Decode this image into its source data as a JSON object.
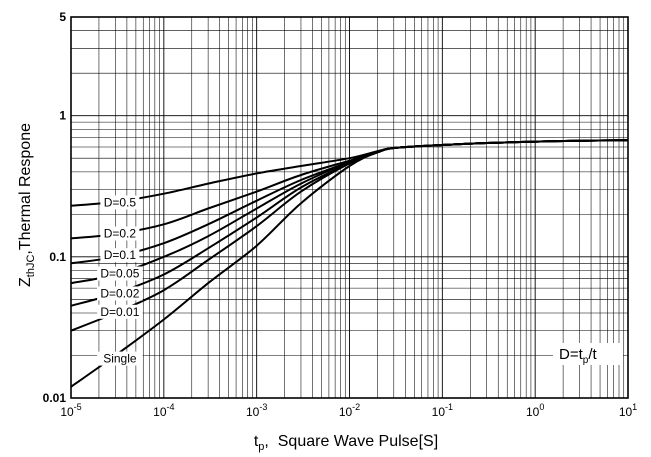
{
  "chart_data": {
    "type": "line",
    "title": "",
    "xscale": "log",
    "yscale": "log",
    "xlim": [
      1e-05,
      10
    ],
    "ylim": [
      0.01,
      5
    ],
    "grid": true,
    "xlabel": {
      "main": "t",
      "sub": "p",
      "rest": ",  Square Wave Pulse[S]"
    },
    "ylabel": {
      "main": "Z",
      "sub": "thJC",
      "rest": ",Thermal Respone"
    },
    "x_ticks": [
      {
        "value": 1e-05,
        "base": "10",
        "exp": "-5"
      },
      {
        "value": 0.0001,
        "base": "10",
        "exp": "-4"
      },
      {
        "value": 0.001,
        "base": "10",
        "exp": "-3"
      },
      {
        "value": 0.01,
        "base": "10",
        "exp": "-2"
      },
      {
        "value": 0.1,
        "base": "10",
        "exp": "-1"
      },
      {
        "value": 1,
        "base": "10",
        "exp": "0"
      },
      {
        "value": 10,
        "base": "10",
        "exp": "1"
      }
    ],
    "y_ticks": [
      {
        "value": 5,
        "label": "5"
      },
      {
        "value": 1,
        "label": "1"
      },
      {
        "value": 0.1,
        "label": "0.1"
      },
      {
        "value": 0.01,
        "label": "0.01"
      }
    ],
    "formula": {
      "main": "D=t",
      "sub": "p",
      "rest": "/t"
    },
    "series": [
      {
        "name": "D=0.5",
        "points": [
          [
            1e-05,
            0.23
          ],
          [
            3e-05,
            0.245
          ],
          [
            0.0001,
            0.28
          ],
          [
            0.0003,
            0.33
          ],
          [
            0.001,
            0.39
          ],
          [
            0.003,
            0.44
          ],
          [
            0.01,
            0.5
          ],
          [
            0.02,
            0.56
          ],
          [
            0.03,
            0.59
          ],
          [
            0.1,
            0.62
          ],
          [
            0.3,
            0.64
          ],
          [
            1,
            0.655
          ],
          [
            3,
            0.665
          ],
          [
            10,
            0.67
          ]
        ]
      },
      {
        "name": "D=0.2",
        "points": [
          [
            1e-05,
            0.135
          ],
          [
            3e-05,
            0.145
          ],
          [
            0.0001,
            0.17
          ],
          [
            0.0003,
            0.22
          ],
          [
            0.001,
            0.29
          ],
          [
            0.003,
            0.38
          ],
          [
            0.01,
            0.48
          ],
          [
            0.02,
            0.55
          ],
          [
            0.03,
            0.59
          ],
          [
            0.1,
            0.62
          ],
          [
            0.3,
            0.64
          ],
          [
            1,
            0.655
          ],
          [
            3,
            0.665
          ],
          [
            10,
            0.67
          ]
        ]
      },
      {
        "name": "D=0.1",
        "points": [
          [
            1e-05,
            0.09
          ],
          [
            3e-05,
            0.1
          ],
          [
            0.0001,
            0.125
          ],
          [
            0.0003,
            0.17
          ],
          [
            0.001,
            0.25
          ],
          [
            0.003,
            0.35
          ],
          [
            0.01,
            0.47
          ],
          [
            0.02,
            0.55
          ],
          [
            0.03,
            0.59
          ],
          [
            0.1,
            0.62
          ],
          [
            0.3,
            0.64
          ],
          [
            1,
            0.655
          ],
          [
            3,
            0.665
          ],
          [
            10,
            0.67
          ]
        ]
      },
      {
        "name": "D=0.05",
        "points": [
          [
            1e-05,
            0.065
          ],
          [
            3e-05,
            0.075
          ],
          [
            0.0001,
            0.1
          ],
          [
            0.0003,
            0.14
          ],
          [
            0.001,
            0.22
          ],
          [
            0.003,
            0.33
          ],
          [
            0.01,
            0.47
          ],
          [
            0.02,
            0.55
          ],
          [
            0.03,
            0.59
          ],
          [
            0.1,
            0.62
          ],
          [
            0.3,
            0.64
          ],
          [
            1,
            0.655
          ],
          [
            3,
            0.665
          ],
          [
            10,
            0.67
          ]
        ]
      },
      {
        "name": "D=0.02",
        "points": [
          [
            1e-05,
            0.045
          ],
          [
            3e-05,
            0.055
          ],
          [
            0.0001,
            0.075
          ],
          [
            0.0003,
            0.115
          ],
          [
            0.001,
            0.19
          ],
          [
            0.003,
            0.31
          ],
          [
            0.01,
            0.46
          ],
          [
            0.02,
            0.55
          ],
          [
            0.03,
            0.59
          ],
          [
            0.1,
            0.62
          ],
          [
            0.3,
            0.64
          ],
          [
            1,
            0.655
          ],
          [
            3,
            0.665
          ],
          [
            10,
            0.67
          ]
        ]
      },
      {
        "name": "D=0.01",
        "points": [
          [
            1e-05,
            0.03
          ],
          [
            3e-05,
            0.04
          ],
          [
            0.0001,
            0.058
          ],
          [
            0.0003,
            0.095
          ],
          [
            0.001,
            0.165
          ],
          [
            0.003,
            0.29
          ],
          [
            0.01,
            0.46
          ],
          [
            0.02,
            0.55
          ],
          [
            0.03,
            0.59
          ],
          [
            0.1,
            0.62
          ],
          [
            0.3,
            0.64
          ],
          [
            1,
            0.655
          ],
          [
            3,
            0.665
          ],
          [
            10,
            0.67
          ]
        ]
      },
      {
        "name": "Single",
        "points": [
          [
            1e-05,
            0.012
          ],
          [
            3e-05,
            0.02
          ],
          [
            0.0001,
            0.036
          ],
          [
            0.0003,
            0.065
          ],
          [
            0.001,
            0.12
          ],
          [
            0.003,
            0.24
          ],
          [
            0.01,
            0.44
          ],
          [
            0.02,
            0.55
          ],
          [
            0.03,
            0.59
          ],
          [
            0.1,
            0.62
          ],
          [
            0.3,
            0.64
          ],
          [
            1,
            0.655
          ],
          [
            3,
            0.665
          ],
          [
            10,
            0.67
          ]
        ]
      }
    ]
  }
}
